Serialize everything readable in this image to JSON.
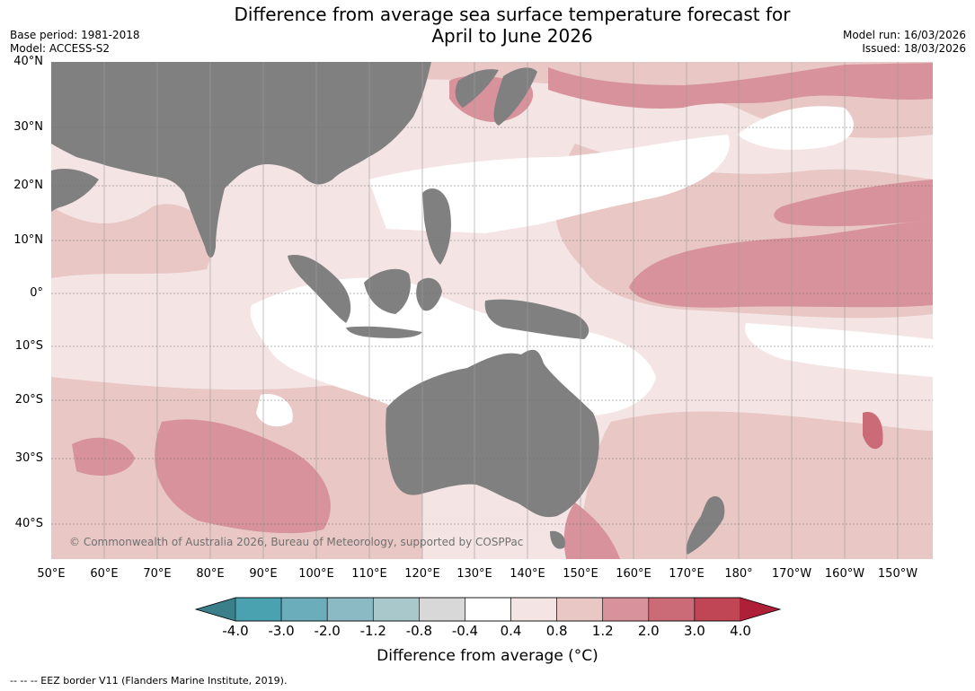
{
  "title": "Difference from average sea surface temperature forecast for\nApril to June 2026",
  "meta_left": {
    "base_period": "Base period: 1981-2018",
    "model": "Model: ACCESS-S2"
  },
  "meta_right": {
    "model_run": "Model run: 16/03/2026",
    "issued": "Issued: 18/03/2026"
  },
  "map": {
    "lat_labels": [
      "40°N",
      "30°N",
      "20°N",
      "10°N",
      "0°",
      "10°S",
      "20°S",
      "30°S",
      "40°S"
    ],
    "lon_labels": [
      "50°E",
      "60°E",
      "70°E",
      "80°E",
      "90°E",
      "100°E",
      "110°E",
      "120°E",
      "130°E",
      "140°E",
      "150°E",
      "160°E",
      "170°E",
      "180°",
      "170°W",
      "160°W",
      "150°W"
    ],
    "land_color": "#808080",
    "copyright": "© Commonwealth of Australia 2026, Bureau of Meteorology, supported by COSPPac"
  },
  "colorbar": {
    "ticks": [
      "-4.0",
      "-3.0",
      "-2.0",
      "-1.2",
      "-0.8",
      "-0.4",
      "0.4",
      "0.8",
      "1.2",
      "2.0",
      "3.0",
      "4.0"
    ],
    "colors": [
      "#4aa2b1",
      "#6cadbb",
      "#8bbac4",
      "#a9c8cc",
      "#d8d8d8",
      "#ffffff",
      "#f4e5e4",
      "#e8c7c5",
      "#d8929b",
      "#cb6b77",
      "#c14655"
    ],
    "under_color": "#3a7f89",
    "over_color": "#ad2038",
    "label": "Difference from average ($^\\circ$C)",
    "label_display": "Difference from average (°C)"
  },
  "footer": "--  --  -- EEZ border V11 (Flanders Marine Institute, 2019)."
}
